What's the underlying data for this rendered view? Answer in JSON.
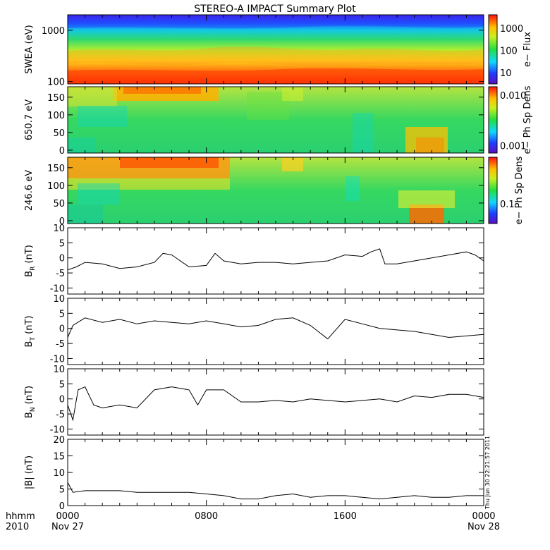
{
  "chart_data": [
    {
      "type": "heatmap",
      "title": "STEREO-A IMPACT Summary Plot",
      "ylabel": "SWEA (eV)",
      "yscale": "log",
      "ylim": [
        90,
        2000
      ],
      "yticks": [
        "100",
        "1000"
      ],
      "colorbar": {
        "label": "e− Flux",
        "scale": "log",
        "ticks": [
          "10",
          "100",
          "1000"
        ]
      },
      "description": "electron energy spectrogram: high flux (red) at low energies, decreasing to low flux (blue) near 2000 eV"
    },
    {
      "type": "heatmap",
      "ylabel": "650.7 eV",
      "ylim": [
        0,
        180
      ],
      "yticks": [
        "0",
        "50",
        "100",
        "150"
      ],
      "colorbar": {
        "label": "e− Ph Sp Dens",
        "scale": "log",
        "ticks": [
          "0.001",
          "0.010"
        ]
      }
    },
    {
      "type": "heatmap",
      "ylabel": "246.6 eV",
      "ylim": [
        0,
        180
      ],
      "yticks": [
        "0",
        "50",
        "100",
        "150"
      ],
      "colorbar": {
        "label": "e− Ph Sp Dens",
        "scale": "linear",
        "ticks": [
          "0.1"
        ]
      }
    },
    {
      "type": "line",
      "ylabel_main": "B",
      "ylabel_sub": "R",
      "ylabel_unit": " (nT)",
      "ylim": [
        -12,
        10
      ],
      "yticks": [
        -10,
        -5,
        0,
        5,
        10
      ],
      "x": [
        0,
        0.5,
        1,
        2,
        3,
        4,
        5,
        5.5,
        6,
        7,
        8,
        8.5,
        9,
        10,
        11,
        12,
        13,
        14,
        15,
        16,
        17,
        17.5,
        18,
        18.3,
        19,
        20,
        21,
        22,
        23,
        23.5,
        24
      ],
      "values": [
        -4,
        -3,
        -1.5,
        -2,
        -3.5,
        -3,
        -1.5,
        1.5,
        1,
        -3,
        -2.5,
        1.5,
        -1,
        -2,
        -1.5,
        -1.5,
        -2,
        -1.5,
        -1,
        1,
        0.5,
        2,
        3,
        -2,
        -2,
        -1,
        0,
        1,
        2,
        1,
        -1
      ]
    },
    {
      "type": "line",
      "ylabel_main": "B",
      "ylabel_sub": "T",
      "ylabel_unit": " (nT)",
      "ylim": [
        -12,
        10
      ],
      "yticks": [
        -10,
        -5,
        0,
        5,
        10
      ],
      "x": [
        0,
        0.3,
        1,
        2,
        3,
        4,
        5,
        6,
        7,
        8,
        9,
        10,
        11,
        12,
        13,
        14,
        15,
        16,
        17,
        18,
        19,
        20,
        21,
        22,
        23,
        24
      ],
      "values": [
        -3,
        1,
        3.5,
        2,
        3,
        1.5,
        2.5,
        2,
        1.5,
        2.5,
        1.5,
        0.5,
        1,
        3,
        3.5,
        1,
        -3.5,
        3,
        1.5,
        0,
        -0.5,
        -1,
        -2,
        -3,
        -2.5,
        -2
      ]
    },
    {
      "type": "line",
      "ylabel_main": "B",
      "ylabel_sub": "N",
      "ylabel_unit": " (nT)",
      "ylim": [
        -12,
        10
      ],
      "yticks": [
        -10,
        -5,
        0,
        5,
        10
      ],
      "x": [
        0,
        0.3,
        0.6,
        1,
        1.5,
        2,
        3,
        4,
        5,
        6,
        7,
        7.5,
        8,
        9,
        10,
        11,
        12,
        13,
        14,
        15,
        16,
        17,
        18,
        19,
        20,
        21,
        22,
        23,
        24
      ],
      "values": [
        -2,
        -7,
        3,
        4,
        -2,
        -3,
        -2,
        -3,
        3,
        4,
        3,
        -2,
        3,
        3,
        -1,
        -1,
        -0.5,
        -1,
        0,
        -0.5,
        -1,
        -0.5,
        0,
        -1,
        1,
        0.5,
        1.5,
        1.5,
        0.5
      ]
    },
    {
      "type": "line",
      "ylabel": "|B| (nT)",
      "ylim": [
        0,
        20
      ],
      "yticks": [
        0,
        5,
        10,
        15,
        20
      ],
      "x": [
        0,
        0.3,
        1,
        2,
        3,
        4,
        5,
        6,
        7,
        8,
        9,
        10,
        11,
        12,
        13,
        14,
        15,
        16,
        17,
        18,
        19,
        20,
        21,
        22,
        23,
        24
      ],
      "values": [
        7,
        4,
        4.5,
        4.5,
        4.5,
        4,
        4,
        4,
        4,
        3.5,
        3,
        2,
        2,
        3,
        3.5,
        2.5,
        3,
        3,
        2.5,
        2,
        2.5,
        3,
        2.5,
        2.5,
        3,
        3
      ]
    }
  ],
  "xaxis": {
    "xlim": [
      0,
      24
    ],
    "row1_label": "hhmm",
    "row2_label": "2010",
    "ticks": [
      {
        "x": 0,
        "label": "0000",
        "sub": "Nov 27"
      },
      {
        "x": 8,
        "label": "0800",
        "sub": ""
      },
      {
        "x": 16,
        "label": "1600",
        "sub": ""
      },
      {
        "x": 24,
        "label": "0000",
        "sub": "Nov 28"
      }
    ]
  },
  "timestamp": "Thu Jun 30 22:21:57 2011"
}
